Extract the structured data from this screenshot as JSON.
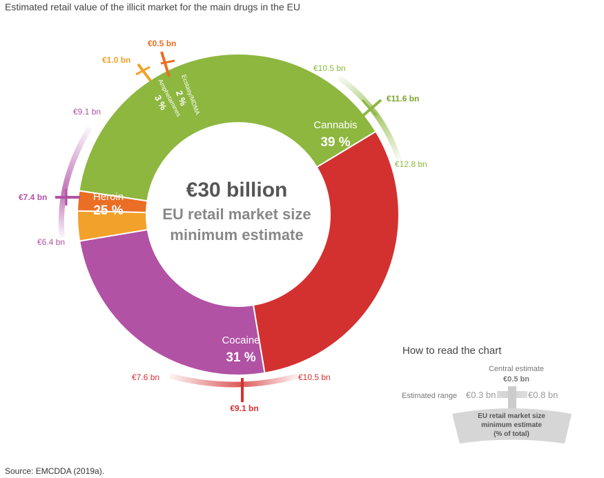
{
  "title": "Estimated retail value of the illicit market for the main drugs in the EU",
  "source": "Source: EMCDDA (2019a).",
  "center": {
    "total": "€30 billion",
    "line1": "EU retail market size",
    "line2": "minimum estimate"
  },
  "chart_data": {
    "type": "pie",
    "title": "Estimated retail value of the illicit market for the main drugs in the EU",
    "unit": "€ bn",
    "total_label": "€30 billion",
    "slices": [
      {
        "name": "Cannabis",
        "percent": 39,
        "pct_label": "39 %",
        "central": 11.6,
        "low": 10.5,
        "high": 12.8,
        "central_label": "€11.6 bn",
        "low_label": "€10.5 bn",
        "high_label": "€12.8 bn",
        "color": "#8db73f"
      },
      {
        "name": "Cocaine",
        "percent": 31,
        "pct_label": "31 %",
        "central": 9.1,
        "low": 7.6,
        "high": 10.5,
        "central_label": "€9.1 bn",
        "low_label": "€7.6 bn",
        "high_label": "€10.5 bn",
        "color": "#d3312f"
      },
      {
        "name": "Heroin",
        "percent": 25,
        "pct_label": "25 %",
        "central": 7.4,
        "low": 6.4,
        "high": 9.1,
        "central_label": "€7.4 bn",
        "low_label": "€6.4 bn",
        "high_label": "€9.1 bn",
        "color": "#b152a4"
      },
      {
        "name": "Amphetamines",
        "percent": 3,
        "pct_label": "3 %",
        "central": 1.0,
        "central_label": "€1.0 bn",
        "color": "#f2a12a"
      },
      {
        "name": "Ecstasy/MDMA",
        "percent": 2,
        "pct_label": "2 %",
        "central": 0.5,
        "central_label": "€0.5 bn",
        "color": "#ea6e24"
      }
    ]
  },
  "how_to_read": {
    "title": "How to read the chart",
    "central_caption": "Central estimate",
    "central_value": "€0.5 bn",
    "range_caption": "Estimated range",
    "range_low": "€0.3 bn",
    "range_high": "€0.8 bn",
    "box_line1": "EU retail market size",
    "box_line2": "minimum estimate",
    "box_line3": "(% of total)",
    "color": "#b8b8b8"
  }
}
